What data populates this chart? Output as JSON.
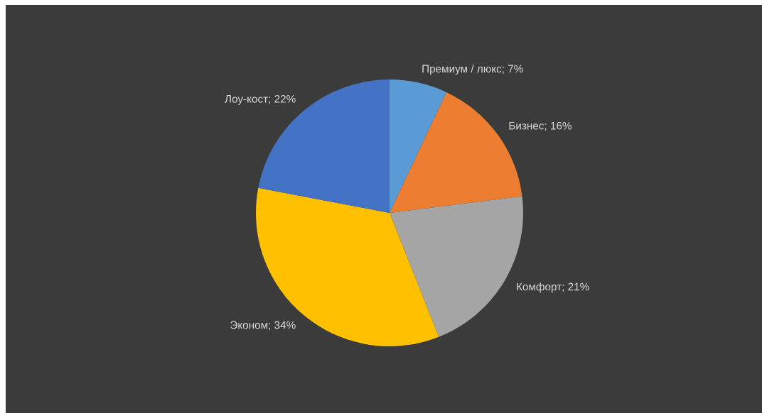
{
  "chart_data": {
    "type": "pie",
    "categories": [
      "Премиум / люкс; 7%",
      "Бизнес; 16%",
      "Комфорт; 21%",
      "Эконом; 34%",
      "Лоу-кост; 22%"
    ],
    "values": [
      7,
      16,
      21,
      34,
      22
    ],
    "colors": [
      "#5b9bd5",
      "#ed7d31",
      "#a5a5a5",
      "#ffc000",
      "#4472c4"
    ]
  }
}
